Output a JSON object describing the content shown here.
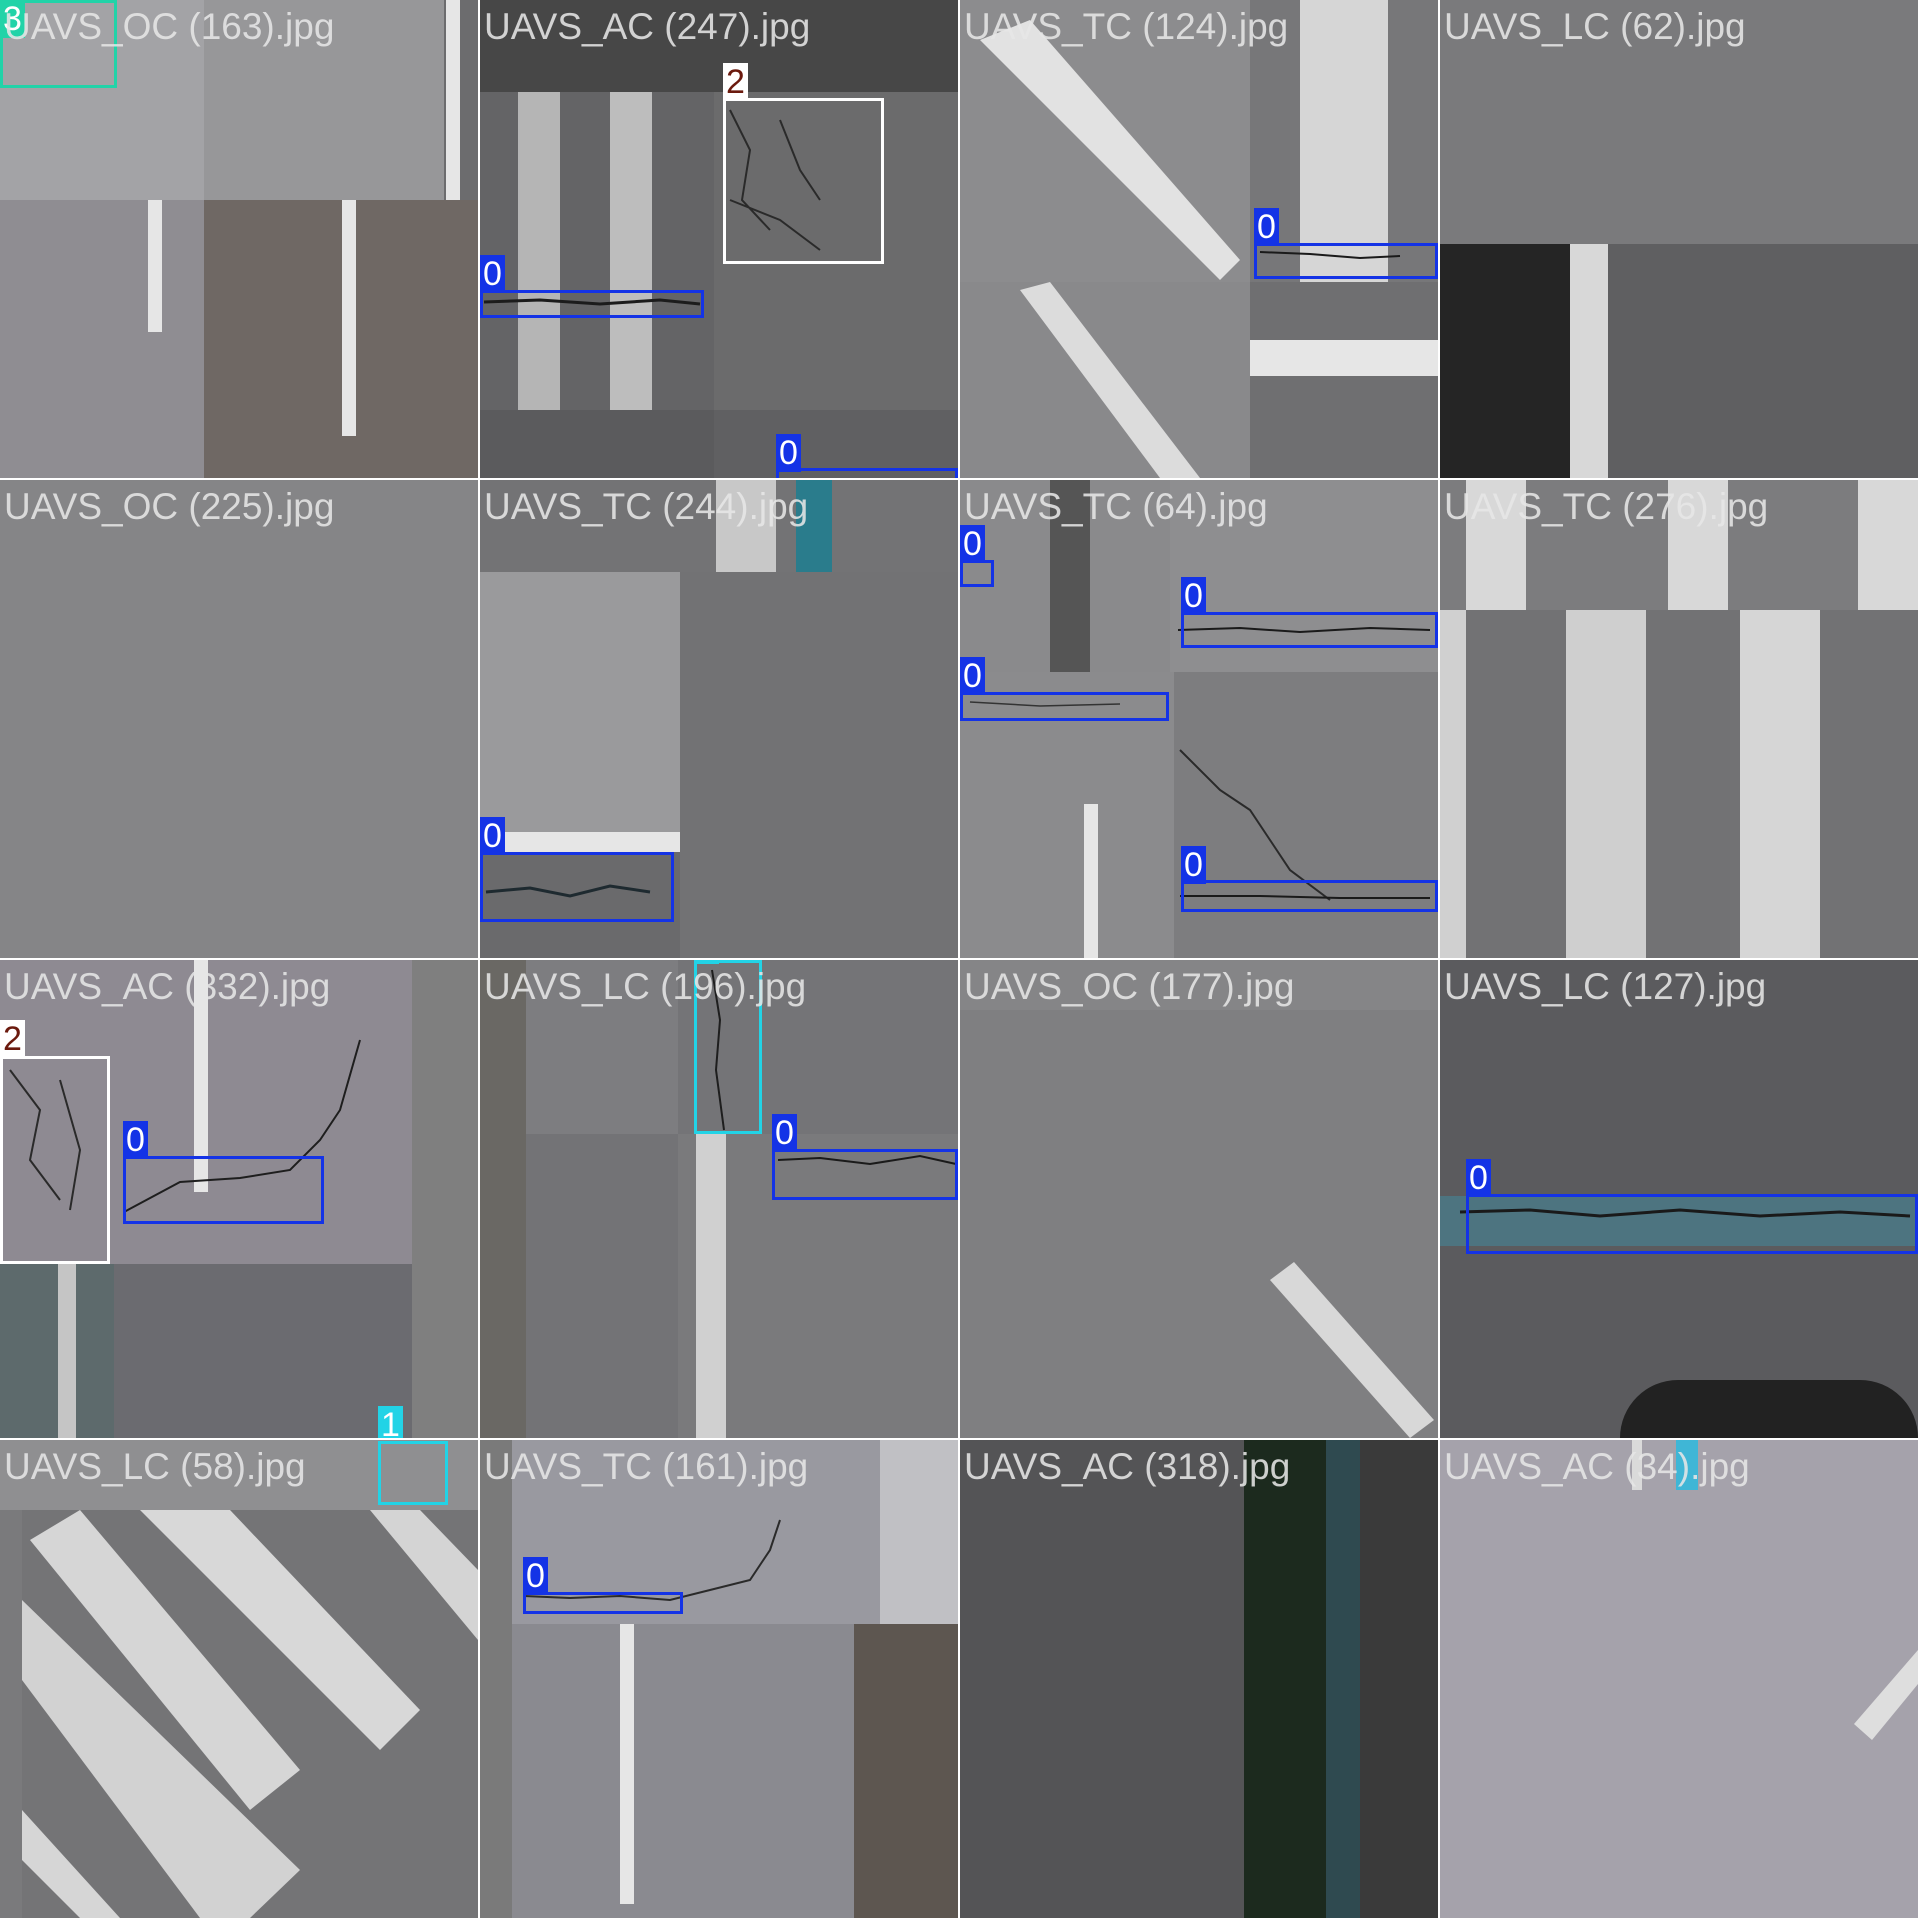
{
  "colors": {
    "class_0": "#1433e6",
    "class_1": "#22d3e6",
    "class_2": "#ffffff",
    "class_3": "#22d3a8",
    "label_2_bg": "#ffffff",
    "label_2_text": "#6b1a0e"
  },
  "tiles": [
    {
      "caption": "UAVS_OC (163).jpg",
      "labels": [
        "3"
      ]
    },
    {
      "caption": "UAVS_AC (247).jpg",
      "labels": [
        "2",
        "0",
        "0"
      ]
    },
    {
      "caption": "UAVS_TC (124).jpg",
      "labels": [
        "0"
      ]
    },
    {
      "caption": "UAVS_LC (62).jpg",
      "labels": []
    },
    {
      "caption": "UAVS_OC (225).jpg",
      "labels": []
    },
    {
      "caption": "UAVS_TC (244).jpg",
      "labels": [
        "0"
      ]
    },
    {
      "caption": "UAVS_TC (64).jpg",
      "labels": [
        "0",
        "0",
        "0",
        "0"
      ]
    },
    {
      "caption": "UAVS_TC (276).jpg",
      "labels": []
    },
    {
      "caption": "UAVS_AC (332).jpg",
      "labels": [
        "2",
        "0",
        "1"
      ]
    },
    {
      "caption": "UAVS_LC (196).jpg",
      "labels": [
        "1",
        "0"
      ]
    },
    {
      "caption": "UAVS_OC (177).jpg",
      "labels": []
    },
    {
      "caption": "UAVS_LC (127).jpg",
      "labels": [
        "0"
      ]
    },
    {
      "caption": "UAVS_LC (58).jpg",
      "labels": []
    },
    {
      "caption": "UAVS_TC (161).jpg",
      "labels": [
        "0"
      ]
    },
    {
      "caption": "UAVS_AC (318).jpg",
      "labels": []
    },
    {
      "caption": "UAVS_AC (34).jpg",
      "labels": []
    }
  ]
}
